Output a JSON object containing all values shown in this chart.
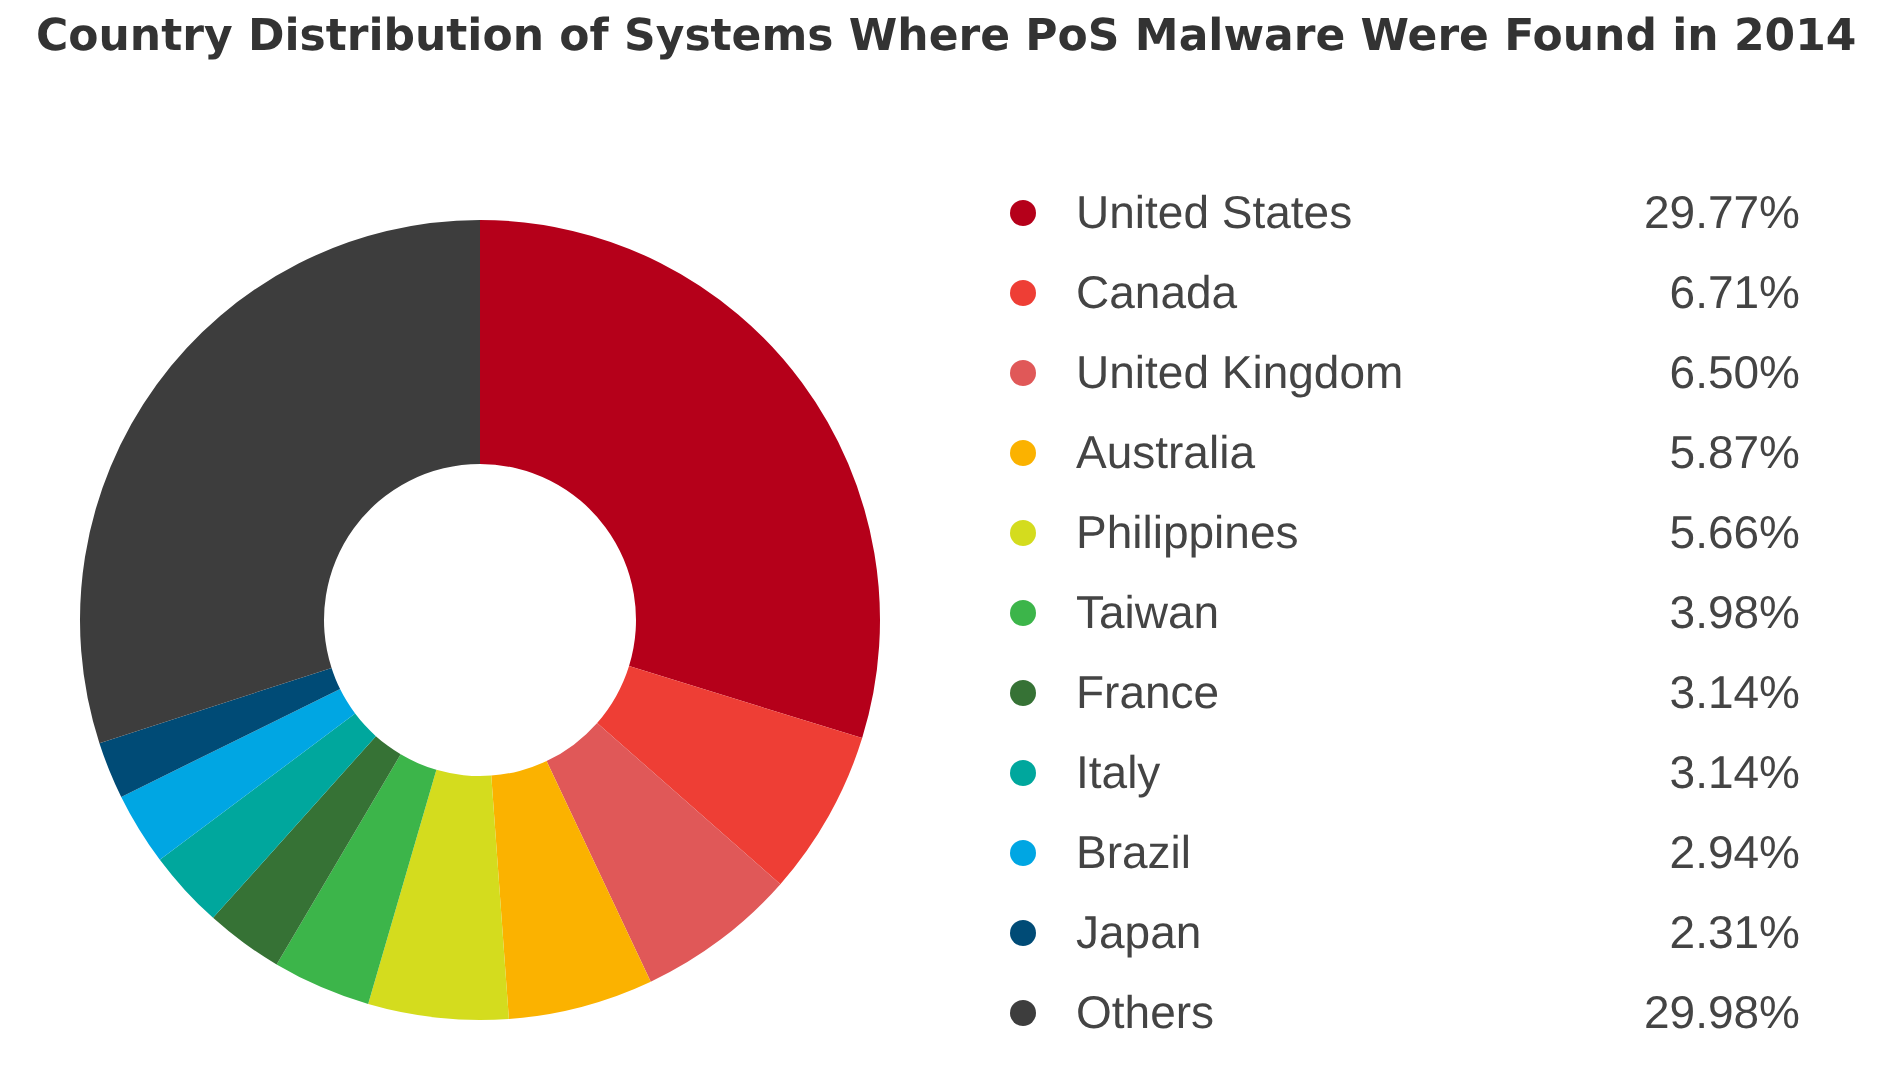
{
  "chart_data": {
    "type": "donut",
    "title": "Country Distribution of Systems Where PoS Malware Were Found in 2014",
    "categories": [
      "United States",
      "Canada",
      "United Kingdom",
      "Australia",
      "Philippines",
      "Taiwan",
      "France",
      "Italy",
      "Brazil",
      "Japan",
      "Others"
    ],
    "values": [
      29.77,
      6.71,
      6.5,
      5.87,
      5.66,
      3.98,
      3.14,
      3.14,
      2.94,
      2.31,
      29.98
    ],
    "colors": [
      "#b5001a",
      "#ee3e35",
      "#e05858",
      "#fbb200",
      "#d4dc1e",
      "#3cb54a",
      "#367235",
      "#00a79d",
      "#00a6e3",
      "#004b76",
      "#3d3d3d"
    ],
    "value_labels": [
      "29.77%",
      "6.71%",
      "6.50%",
      "5.87%",
      "5.66%",
      "3.98%",
      "3.14%",
      "3.14%",
      "2.94%",
      "2.31%",
      "29.98%"
    ],
    "legend": "right"
  }
}
